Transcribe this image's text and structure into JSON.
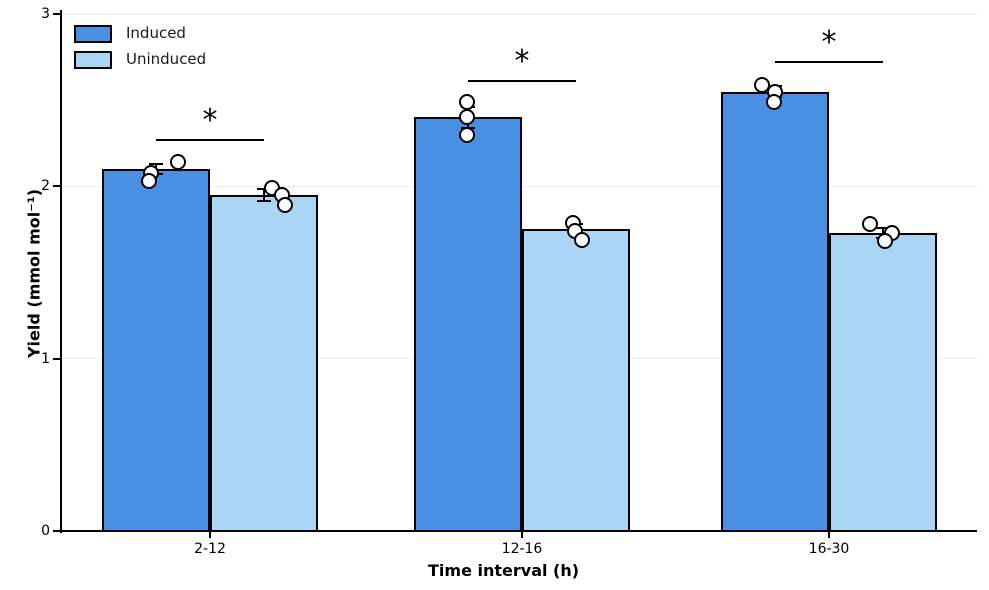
{
  "chart_data": {
    "type": "bar",
    "title": "",
    "xlabel": "Time interval (h)",
    "ylabel": "Yield (mmol mol⁻¹)",
    "categories": [
      "2-12",
      "12-16",
      "16-30"
    ],
    "ylim": [
      0,
      3
    ],
    "yticks": [
      0,
      1,
      2,
      3
    ],
    "grid": "horizontal-light",
    "legend_position": "upper-left-inside",
    "background_color": "#ffffff",
    "gridline_color": "#ebebeb",
    "axis_color": "#000000",
    "point_style": {
      "fill": "#ffffff",
      "edge": "#000000"
    },
    "series": [
      {
        "name": "Induced",
        "color": "#4a90e2",
        "values": [
          2.1,
          2.4,
          2.55
        ],
        "errors": [
          0.03,
          0.06,
          0.03
        ],
        "points": [
          [
            {
              "v": 2.14,
              "dx": 22
            },
            {
              "v": 2.08,
              "dx": -5
            },
            {
              "v": 2.03,
              "dx": -7
            }
          ],
          [
            {
              "v": 2.49,
              "dx": -1
            },
            {
              "v": 2.4,
              "dx": -1
            },
            {
              "v": 2.3,
              "dx": -1
            }
          ],
          [
            {
              "v": 2.59,
              "dx": -13
            },
            {
              "v": 2.55,
              "dx": 0
            },
            {
              "v": 2.49,
              "dx": -1
            }
          ]
        ]
      },
      {
        "name": "Uninduced",
        "color": "#abd5f5",
        "values": [
          1.95,
          1.75,
          1.73
        ],
        "errors": [
          0.035,
          0.03,
          0.03
        ],
        "points": [
          [
            {
              "v": 1.99,
              "dx": 8
            },
            {
              "v": 1.95,
              "dx": 18
            },
            {
              "v": 1.89,
              "dx": 21
            }
          ],
          [
            {
              "v": 1.79,
              "dx": -3
            },
            {
              "v": 1.74,
              "dx": -1
            },
            {
              "v": 1.69,
              "dx": 6
            }
          ],
          [
            {
              "v": 1.78,
              "dx": -13
            },
            {
              "v": 1.73,
              "dx": 9
            },
            {
              "v": 1.68,
              "dx": 2
            }
          ]
        ]
      }
    ],
    "significance": [
      {
        "pair": 0,
        "height": 2.27,
        "label": "*"
      },
      {
        "pair": 1,
        "height": 2.61,
        "label": "*"
      },
      {
        "pair": 2,
        "height": 2.72,
        "label": "*"
      }
    ]
  }
}
